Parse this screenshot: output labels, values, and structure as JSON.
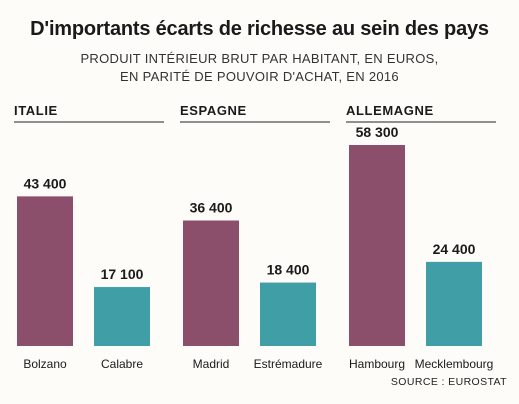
{
  "header": {
    "title": "D'importants écarts de richesse au sein des pays",
    "subtitle_line1": "PRODUIT INTÉRIEUR BRUT PAR HABITANT, EN EUROS,",
    "subtitle_line2": "EN PARITÉ DE POUVOIR D'ACHAT, EN 2016"
  },
  "footer": {
    "source": "SOURCE : EUROSTAT"
  },
  "chart_data": {
    "type": "bar",
    "title": "D'importants écarts de richesse au sein des pays",
    "subtitle": "PRODUIT INTÉRIEUR BRUT PAR HABITANT, EN EUROS, EN PARITÉ DE POUVOIR D'ACHAT, EN 2016",
    "ylim": [
      0,
      60000
    ],
    "grid": false,
    "colors": {
      "rich": "#8c4f6b",
      "poor": "#3f9ea6"
    },
    "groups": [
      {
        "name": "ITALIE",
        "bars": [
          {
            "label": "Bolzano",
            "value": 43400,
            "display": "43 400",
            "kind": "rich"
          },
          {
            "label": "Calabre",
            "value": 17100,
            "display": "17 100",
            "kind": "poor"
          }
        ]
      },
      {
        "name": "ESPAGNE",
        "bars": [
          {
            "label": "Madrid",
            "value": 36400,
            "display": "36 400",
            "kind": "rich"
          },
          {
            "label": "Estrémadure",
            "value": 18400,
            "display": "18 400",
            "kind": "poor"
          }
        ]
      },
      {
        "name": "ALLEMAGNE",
        "bars": [
          {
            "label": "Hambourg",
            "value": 58300,
            "display": "58 300",
            "kind": "rich"
          },
          {
            "label": "Mecklembourg",
            "value": 24400,
            "display": "24 400",
            "kind": "poor"
          }
        ]
      }
    ]
  }
}
